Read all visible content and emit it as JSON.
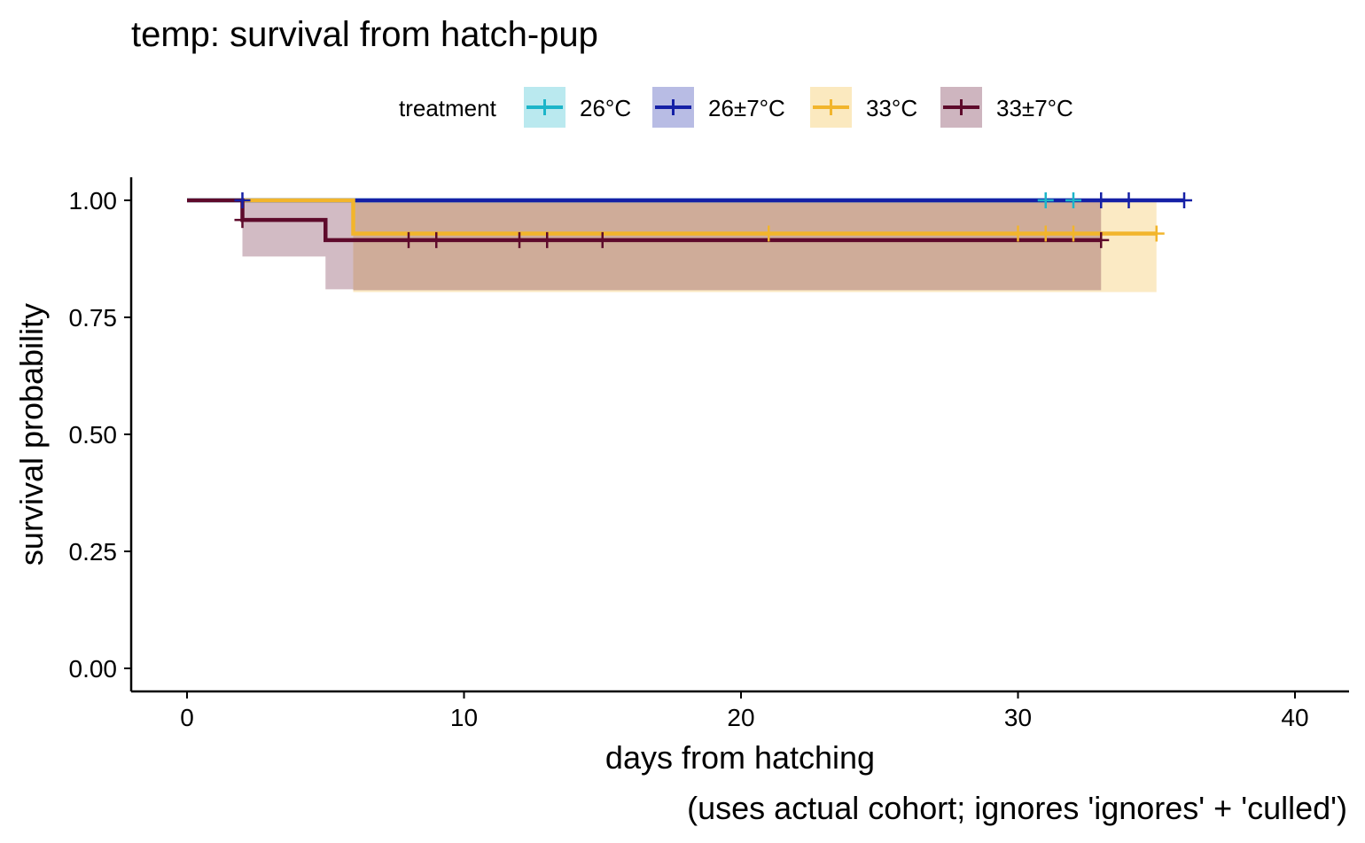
{
  "chart_data": {
    "type": "line",
    "subtype": "kaplan-meier step curves with confidence bands and censor marks",
    "title": "temp: survival from hatch-pup",
    "xlabel": "days from hatching",
    "xlabel_note": "(uses actual cohort; ignores 'ignores' + 'culled')",
    "ylabel": "survival probability",
    "xlim": [
      -2,
      42
    ],
    "ylim": [
      -0.05,
      1.05
    ],
    "x_ticks": [
      0,
      10,
      20,
      30,
      40
    ],
    "x_tick_labels": [
      "0",
      "10",
      "20",
      "30",
      "40"
    ],
    "y_ticks": [
      0,
      0.25,
      0.5,
      0.75,
      1.0
    ],
    "y_tick_labels": [
      "0.00",
      "0.25",
      "0.50",
      "0.75",
      "1.00"
    ],
    "grid": false,
    "legend": {
      "title": "treatment",
      "position": "top",
      "entries": [
        "26°C",
        "26±7°C",
        "33°C",
        "33±7°C"
      ]
    },
    "series": [
      {
        "name": "26°C",
        "color": "#1CB5C9",
        "steps": [
          [
            0,
            1.0
          ],
          [
            32,
            1.0
          ]
        ],
        "censor_times": [
          31,
          32
        ],
        "censor_values": [
          1.0,
          1.0
        ],
        "band": []
      },
      {
        "name": "26±7°C",
        "color": "#1520A6",
        "steps": [
          [
            2,
            1.0
          ],
          [
            36,
            1.0
          ]
        ],
        "censor_times": [
          2,
          33,
          34,
          36
        ],
        "censor_values": [
          1.0,
          1.0,
          1.0,
          1.0
        ],
        "band": []
      },
      {
        "name": "33°C",
        "color": "#F2B52C",
        "steps": [
          [
            2,
            1.0
          ],
          [
            6,
            1.0
          ],
          [
            6,
            0.929
          ],
          [
            35,
            0.929
          ]
        ],
        "censor_times": [
          21,
          30,
          31,
          32,
          35
        ],
        "censor_values": [
          0.929,
          0.929,
          0.929,
          0.929,
          0.929
        ],
        "band": [
          [
            6,
            0.804,
            1.0
          ],
          [
            35,
            0.804,
            1.0
          ]
        ]
      },
      {
        "name": "33±7°C",
        "color": "#5E0A2B",
        "steps": [
          [
            0,
            1.0
          ],
          [
            2,
            1.0
          ],
          [
            2,
            0.958
          ],
          [
            5,
            0.958
          ],
          [
            5,
            0.915
          ],
          [
            33,
            0.915
          ]
        ],
        "censor_times": [
          2,
          8,
          9,
          12,
          13,
          15,
          33
        ],
        "censor_values": [
          0.958,
          0.915,
          0.915,
          0.915,
          0.915,
          0.915,
          0.915
        ],
        "band": [
          [
            2,
            0.88,
            1.0
          ],
          [
            5,
            0.81,
            1.0
          ],
          [
            6,
            0.808,
            1.0
          ],
          [
            33,
            0.808,
            1.0
          ]
        ]
      }
    ]
  }
}
